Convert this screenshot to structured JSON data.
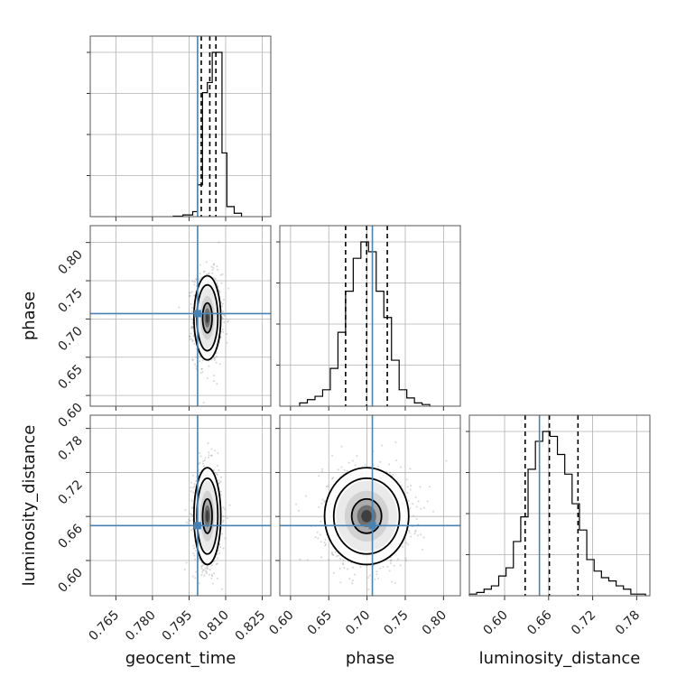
{
  "chart_data": {
    "type": "corner",
    "parameters": [
      "geocent_time",
      "phase",
      "luminosity_distance"
    ],
    "ranges": {
      "geocent_time": [
        0.7545,
        0.8285
      ],
      "phase": [
        0.586,
        0.822
      ],
      "luminosity_distance": [
        0.552,
        0.798
      ]
    },
    "ticks": {
      "geocent_time": [
        "0.765",
        "0.780",
        "0.795",
        "0.810",
        "0.825"
      ],
      "phase": [
        "0.60",
        "0.65",
        "0.70",
        "0.75",
        "0.80"
      ],
      "luminosity_distance": [
        "0.60",
        "0.66",
        "0.72",
        "0.78"
      ]
    },
    "truths": {
      "geocent_time": 0.7985,
      "phase": 0.707,
      "luminosity_distance": 0.6475
    },
    "quantiles": {
      "geocent_time": [
        0.8,
        0.8035,
        0.806
      ],
      "phase": [
        0.672,
        0.6995,
        0.7265
      ],
      "luminosity_distance": [
        0.628,
        0.661,
        0.7
      ]
    },
    "histograms": {
      "geocent_time": {
        "bin_edges": [
          0.7885,
          0.7925,
          0.7965,
          0.7985,
          0.8005,
          0.8025,
          0.8045,
          0.8065,
          0.8085,
          0.8105,
          0.8135,
          0.8165
        ],
        "counts": [
          0.3,
          1,
          3,
          19,
          74,
          80,
          98,
          98,
          38,
          6,
          2
        ]
      },
      "phase": {
        "bin_edges": [
          0.612,
          0.622,
          0.632,
          0.642,
          0.652,
          0.662,
          0.672,
          0.682,
          0.692,
          0.702,
          0.712,
          0.722,
          0.732,
          0.742,
          0.752,
          0.762,
          0.772,
          0.782
        ],
        "counts": [
          2,
          4,
          6,
          10,
          23,
          45,
          70,
          90,
          100,
          94,
          70,
          54,
          28,
          10,
          5,
          2,
          1
        ]
      },
      "luminosity_distance": {
        "bin_edges": [
          0.552,
          0.562,
          0.572,
          0.582,
          0.592,
          0.602,
          0.612,
          0.622,
          0.632,
          0.642,
          0.652,
          0.662,
          0.672,
          0.682,
          0.692,
          0.702,
          0.712,
          0.722,
          0.732,
          0.742,
          0.752,
          0.762,
          0.772,
          0.782,
          0.792
        ],
        "counts": [
          1,
          2,
          4,
          6,
          12,
          17,
          33,
          48,
          77,
          94,
          100,
          97,
          86,
          74,
          56,
          40,
          22,
          15,
          11,
          9,
          6,
          4,
          1,
          1
        ]
      }
    },
    "posterior_2d": {
      "geocent_time_vs_phase": {
        "center": [
          0.8025,
          0.7015
        ],
        "sigma": [
          0.0025,
          0.025
        ],
        "rotation_deg": 0
      },
      "geocent_time_vs_luminosity_distance": {
        "center": [
          0.8025,
          0.6605
        ],
        "sigma": [
          0.0025,
          0.03
        ],
        "rotation_deg": 0
      },
      "phase_vs_luminosity_distance": {
        "center": [
          0.6995,
          0.6605
        ],
        "sigma": [
          0.025,
          0.03
        ],
        "rotation_deg": 0
      }
    },
    "contour_levels": [
      0.39,
      0.86,
      1.1
    ],
    "colors": {
      "truth": "#4682b4",
      "histogram": "#000000",
      "quantile": "#000000",
      "density": "#000000",
      "grid": "#b0b0b0"
    },
    "grid": true
  }
}
